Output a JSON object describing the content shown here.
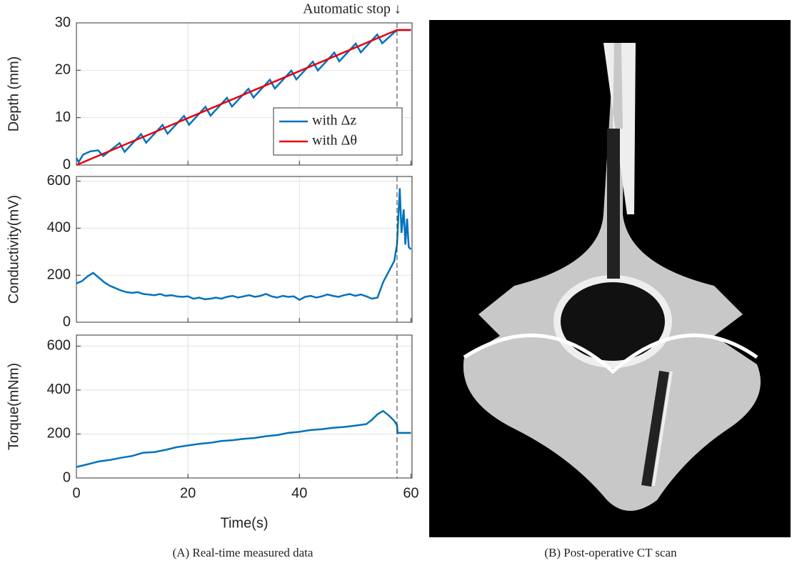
{
  "chart_data": [
    {
      "type": "line",
      "ylabel": "Depth (mm)",
      "xlim": [
        0,
        60.2
      ],
      "xticks": [
        0,
        20,
        40,
        60
      ],
      "ylim": [
        0,
        30
      ],
      "yticks": [
        0,
        10,
        20,
        30
      ],
      "grid": true,
      "annotation": "Automatic stop ↓",
      "stop_x": 57.5,
      "legend": "lower right",
      "series": [
        {
          "name": "with Δz",
          "color": "#0072bd",
          "x": [
            0,
            0.4,
            1.2,
            2.5,
            3.9,
            4.8,
            7.75,
            8.65,
            11.6,
            12.5,
            15.45,
            16.35,
            19.3,
            20.2,
            23.15,
            24.05,
            27.0,
            27.9,
            30.85,
            31.75,
            34.7,
            35.6,
            38.55,
            39.45,
            42.4,
            43.3,
            46.25,
            47.15,
            50.1,
            51.0,
            53.95,
            54.85,
            57.5,
            60
          ],
          "values": [
            1.5,
            0.6,
            2.2,
            2.9,
            3.1,
            1.9,
            4.64,
            2.79,
            6.55,
            4.7,
            8.46,
            6.6,
            10.37,
            8.51,
            12.28,
            10.42,
            14.18,
            12.33,
            16.09,
            14.24,
            18.0,
            16.15,
            19.91,
            18.06,
            21.82,
            19.96,
            23.73,
            21.87,
            25.63,
            23.78,
            27.54,
            25.69,
            28.5,
            28.5
          ]
        },
        {
          "name": "with Δθ",
          "color": "#e8000b",
          "x": [
            0,
            57.5,
            60
          ],
          "values": [
            0,
            28.5,
            28.5
          ]
        }
      ]
    },
    {
      "type": "line",
      "ylabel": "Conductivity(mV)",
      "xlim": [
        0,
        60.2
      ],
      "xticks": [
        0,
        20,
        40,
        60
      ],
      "ylim": [
        0,
        620
      ],
      "yticks": [
        0,
        200,
        400,
        600
      ],
      "grid": true,
      "stop_x": 57.5,
      "series": [
        {
          "name": null,
          "color": "#0072bd",
          "x": [
            0,
            1,
            2,
            3,
            4,
            5,
            6,
            7,
            8,
            9,
            10,
            11,
            12,
            13,
            14,
            15,
            16,
            17,
            18,
            19,
            20,
            21,
            22,
            23,
            24,
            25,
            26,
            27,
            28,
            29,
            30,
            31,
            32,
            33,
            34,
            35,
            36,
            37,
            38,
            39,
            40,
            41,
            42,
            43,
            44,
            45,
            46,
            47,
            48,
            49,
            50,
            51,
            52,
            53,
            54,
            55,
            56,
            57,
            57.5,
            58,
            58.3,
            58.7,
            59,
            59.3,
            59.6,
            60
          ],
          "values": [
            165,
            175,
            195,
            210,
            190,
            170,
            155,
            145,
            135,
            128,
            125,
            128,
            120,
            118,
            115,
            120,
            112,
            115,
            110,
            108,
            110,
            100,
            105,
            98,
            100,
            105,
            100,
            108,
            112,
            105,
            110,
            115,
            108,
            112,
            120,
            110,
            105,
            112,
            108,
            110,
            95,
            108,
            112,
            105,
            110,
            118,
            112,
            108,
            115,
            120,
            112,
            118,
            110,
            100,
            105,
            170,
            215,
            260,
            330,
            570,
            380,
            480,
            330,
            440,
            320,
            310
          ]
        }
      ]
    },
    {
      "type": "line",
      "ylabel": "Torque(mNm)",
      "xlabel": "Time(s)",
      "xticklabels": true,
      "xlim": [
        0,
        60.2
      ],
      "xticks": [
        0,
        20,
        40,
        60
      ],
      "ylim": [
        0,
        650
      ],
      "yticks": [
        0,
        200,
        400,
        600
      ],
      "grid": true,
      "stop_x": 57.5,
      "series": [
        {
          "name": null,
          "color": "#0072bd",
          "x": [
            0,
            2,
            4,
            6,
            8,
            10,
            12,
            14,
            16,
            18,
            20,
            22,
            24,
            26,
            28,
            30,
            32,
            34,
            36,
            38,
            40,
            42,
            44,
            46,
            48,
            50,
            52,
            53,
            54,
            55,
            56,
            57,
            57.5,
            57.6,
            60
          ],
          "values": [
            50,
            62,
            75,
            82,
            92,
            100,
            115,
            118,
            128,
            140,
            148,
            155,
            160,
            168,
            172,
            178,
            182,
            190,
            195,
            205,
            210,
            218,
            222,
            228,
            232,
            238,
            245,
            265,
            290,
            305,
            285,
            260,
            240,
            205,
            205
          ]
        }
      ]
    }
  ],
  "captions": {
    "left": "(A) Real-time measured data",
    "right": "(B) Post-operative CT scan"
  }
}
